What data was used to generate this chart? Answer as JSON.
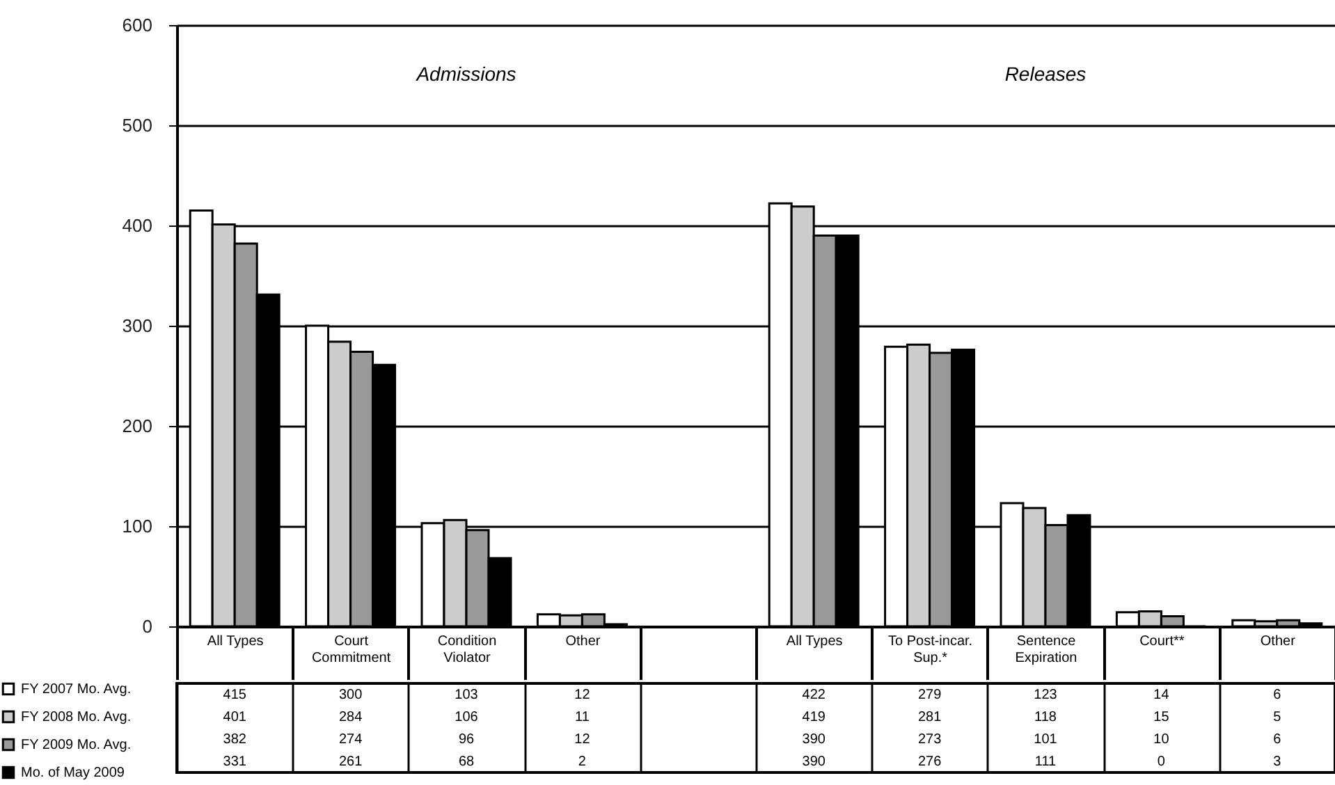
{
  "chart_data": {
    "type": "bar",
    "categories": [
      "All Types",
      "Court Commitment",
      "Condition Violator",
      "Other",
      null,
      "All Types",
      "To Post-incar. Sup.*",
      "Sentence Expiration",
      "Court**",
      "Other"
    ],
    "series": [
      {
        "name": "FY 2007 Mo. Avg.",
        "color": "#ffffff",
        "values": [
          415,
          300,
          103,
          12,
          null,
          422,
          279,
          123,
          14,
          6
        ]
      },
      {
        "name": "FY 2008 Mo. Avg.",
        "color": "#cccccc",
        "values": [
          401,
          284,
          106,
          11,
          null,
          419,
          281,
          118,
          15,
          5
        ]
      },
      {
        "name": "FY 2009 Mo. Avg.",
        "color": "#999999",
        "values": [
          382,
          274,
          96,
          12,
          null,
          390,
          273,
          101,
          10,
          6
        ]
      },
      {
        "name": "Mo. of May 2009",
        "color": "#000000",
        "values": [
          331,
          261,
          68,
          2,
          null,
          390,
          276,
          111,
          0,
          3
        ]
      }
    ],
    "ylim": [
      0,
      600
    ],
    "yticks": [
      0,
      100,
      200,
      300,
      400,
      500,
      600
    ],
    "grid": "y",
    "legend": "bottom left",
    "data_labels": true,
    "annotations": [
      "Admissions",
      "Releases"
    ]
  }
}
